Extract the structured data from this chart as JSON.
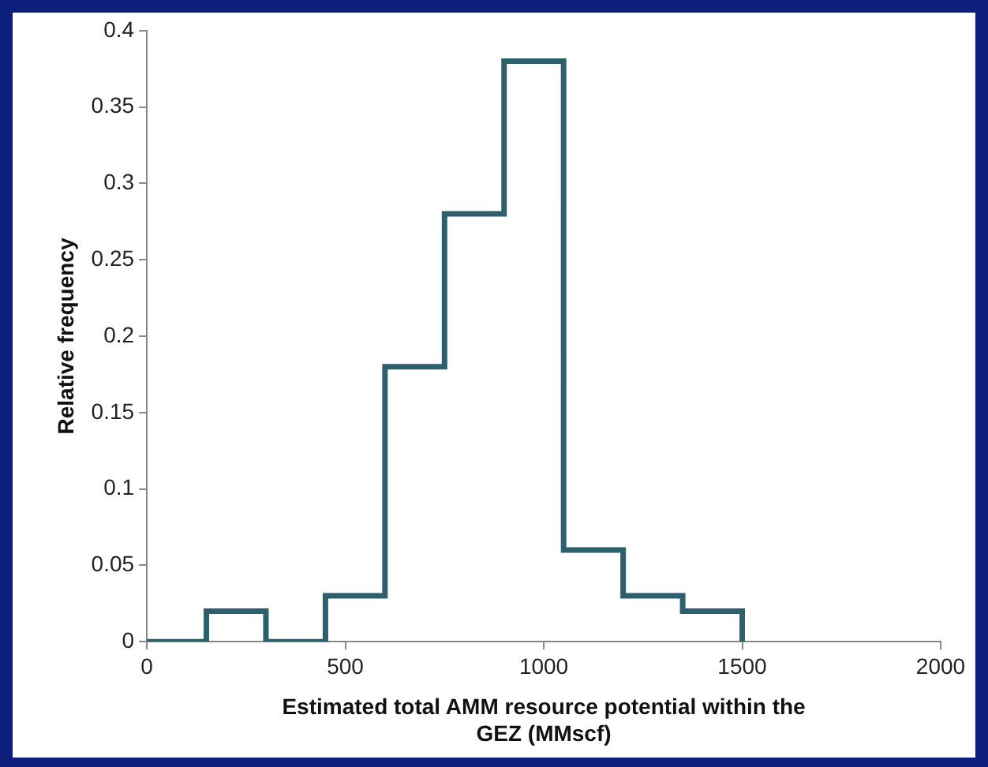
{
  "chart_data": {
    "type": "histogram",
    "xlabel": "Estimated total AMM resource potential within the GEZ (MMscf)",
    "ylabel": "Relative frequency",
    "bins": [
      0,
      150,
      300,
      450,
      600,
      750,
      900,
      1050,
      1200,
      1350,
      1500
    ],
    "values": [
      0,
      0.02,
      0,
      0.03,
      0.18,
      0.28,
      0.38,
      0.06,
      0.03,
      0.02
    ],
    "color": "#2d5f6d",
    "xlim": [
      0,
      2000
    ],
    "xticks": [
      0,
      500,
      1000,
      1500,
      2000
    ],
    "ylim": [
      0,
      0.4
    ],
    "yticks": [
      0,
      0.05,
      0.1,
      0.15,
      0.2,
      0.25,
      0.3,
      0.35,
      0.4
    ],
    "grid": false
  }
}
